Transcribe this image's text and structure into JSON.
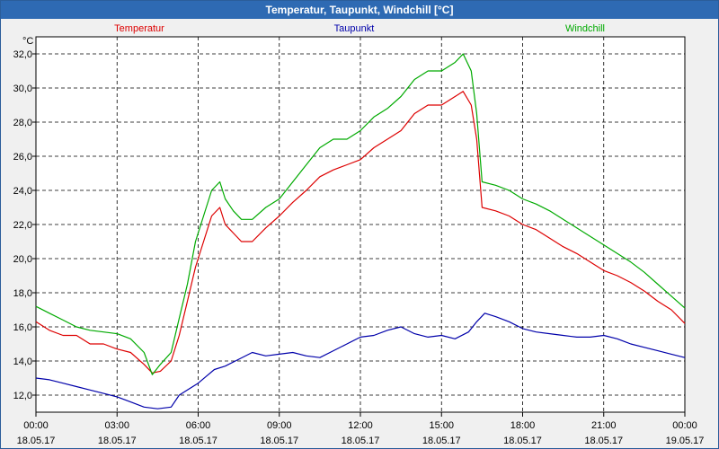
{
  "window": {
    "title": "Temperatur, Taupunkt, Windchill [°C]"
  },
  "chart_data": {
    "type": "line",
    "title": "Temperatur, Taupunkt, Windchill [°C]",
    "unit_label": "°C",
    "x_range_hours": [
      0,
      24
    ],
    "ylim": [
      11,
      33
    ],
    "y_ticks": [
      "12,0",
      "14,0",
      "16,0",
      "18,0",
      "20,0",
      "22,0",
      "24,0",
      "26,0",
      "28,0",
      "30,0",
      "32,0"
    ],
    "x_ticks": [
      {
        "time": "00:00",
        "date": "18.05.17"
      },
      {
        "time": "03:00",
        "date": "18.05.17"
      },
      {
        "time": "06:00",
        "date": "18.05.17"
      },
      {
        "time": "09:00",
        "date": "18.05.17"
      },
      {
        "time": "12:00",
        "date": "18.05.17"
      },
      {
        "time": "15:00",
        "date": "18.05.17"
      },
      {
        "time": "18:00",
        "date": "18.05.17"
      },
      {
        "time": "21:00",
        "date": "18.05.17"
      },
      {
        "time": "00:00",
        "date": "19.05.17"
      }
    ],
    "grid": true,
    "legend_position": "top",
    "series": [
      {
        "name": "Temperatur",
        "color": "#dd0000",
        "points": [
          [
            0,
            16.3
          ],
          [
            0.5,
            15.8
          ],
          [
            1,
            15.5
          ],
          [
            1.5,
            15.5
          ],
          [
            2,
            15.0
          ],
          [
            2.5,
            15.0
          ],
          [
            3,
            14.7
          ],
          [
            3.5,
            14.5
          ],
          [
            4,
            13.8
          ],
          [
            4.3,
            13.3
          ],
          [
            4.6,
            13.4
          ],
          [
            5,
            14.0
          ],
          [
            5.3,
            15.5
          ],
          [
            5.6,
            17.5
          ],
          [
            5.9,
            19.5
          ],
          [
            6.2,
            21.0
          ],
          [
            6.5,
            22.5
          ],
          [
            6.8,
            23.0
          ],
          [
            7.0,
            22.0
          ],
          [
            7.3,
            21.5
          ],
          [
            7.6,
            21.0
          ],
          [
            8,
            21.0
          ],
          [
            8.5,
            21.8
          ],
          [
            9,
            22.5
          ],
          [
            9.5,
            23.3
          ],
          [
            10,
            24.0
          ],
          [
            10.5,
            24.8
          ],
          [
            11,
            25.2
          ],
          [
            11.5,
            25.5
          ],
          [
            12,
            25.8
          ],
          [
            12.5,
            26.5
          ],
          [
            13,
            27.0
          ],
          [
            13.5,
            27.5
          ],
          [
            14,
            28.5
          ],
          [
            14.5,
            29.0
          ],
          [
            15,
            29.0
          ],
          [
            15.5,
            29.5
          ],
          [
            15.8,
            29.8
          ],
          [
            16.1,
            29.0
          ],
          [
            16.3,
            27.0
          ],
          [
            16.5,
            23.0
          ],
          [
            17,
            22.8
          ],
          [
            17.5,
            22.5
          ],
          [
            18,
            22.0
          ],
          [
            18.5,
            21.7
          ],
          [
            19,
            21.2
          ],
          [
            19.5,
            20.7
          ],
          [
            20,
            20.3
          ],
          [
            20.5,
            19.8
          ],
          [
            21,
            19.3
          ],
          [
            21.5,
            19.0
          ],
          [
            22,
            18.6
          ],
          [
            22.5,
            18.1
          ],
          [
            23,
            17.5
          ],
          [
            23.5,
            17.0
          ],
          [
            24,
            16.2
          ]
        ]
      },
      {
        "name": "Taupunkt",
        "color": "#0000aa",
        "points": [
          [
            0,
            13.0
          ],
          [
            0.5,
            12.9
          ],
          [
            1,
            12.7
          ],
          [
            1.5,
            12.5
          ],
          [
            2,
            12.3
          ],
          [
            2.5,
            12.1
          ],
          [
            3,
            11.9
          ],
          [
            3.5,
            11.6
          ],
          [
            4,
            11.3
          ],
          [
            4.5,
            11.2
          ],
          [
            5,
            11.3
          ],
          [
            5.3,
            12.0
          ],
          [
            5.6,
            12.3
          ],
          [
            6,
            12.7
          ],
          [
            6.3,
            13.1
          ],
          [
            6.6,
            13.5
          ],
          [
            7,
            13.7
          ],
          [
            7.5,
            14.1
          ],
          [
            8,
            14.5
          ],
          [
            8.5,
            14.3
          ],
          [
            9,
            14.4
          ],
          [
            9.5,
            14.5
          ],
          [
            10,
            14.3
          ],
          [
            10.5,
            14.2
          ],
          [
            11,
            14.6
          ],
          [
            11.5,
            15.0
          ],
          [
            12,
            15.4
          ],
          [
            12.5,
            15.5
          ],
          [
            13,
            15.8
          ],
          [
            13.5,
            16.0
          ],
          [
            14,
            15.6
          ],
          [
            14.5,
            15.4
          ],
          [
            15,
            15.5
          ],
          [
            15.5,
            15.3
          ],
          [
            16,
            15.7
          ],
          [
            16.3,
            16.3
          ],
          [
            16.6,
            16.8
          ],
          [
            17,
            16.6
          ],
          [
            17.5,
            16.3
          ],
          [
            18,
            15.9
          ],
          [
            18.5,
            15.7
          ],
          [
            19,
            15.6
          ],
          [
            19.5,
            15.5
          ],
          [
            20,
            15.4
          ],
          [
            20.5,
            15.4
          ],
          [
            21,
            15.5
          ],
          [
            21.5,
            15.3
          ],
          [
            22,
            15.0
          ],
          [
            22.5,
            14.8
          ],
          [
            23,
            14.6
          ],
          [
            23.5,
            14.4
          ],
          [
            24,
            14.2
          ]
        ]
      },
      {
        "name": "Windchill",
        "color": "#00aa00",
        "points": [
          [
            0,
            17.2
          ],
          [
            0.5,
            16.8
          ],
          [
            1,
            16.4
          ],
          [
            1.5,
            16.0
          ],
          [
            2,
            15.8
          ],
          [
            2.5,
            15.7
          ],
          [
            3,
            15.6
          ],
          [
            3.5,
            15.3
          ],
          [
            4,
            14.5
          ],
          [
            4.3,
            13.2
          ],
          [
            4.6,
            13.8
          ],
          [
            5,
            14.5
          ],
          [
            5.3,
            16.5
          ],
          [
            5.6,
            18.5
          ],
          [
            5.9,
            21.0
          ],
          [
            6.2,
            22.5
          ],
          [
            6.5,
            24.0
          ],
          [
            6.8,
            24.5
          ],
          [
            7.0,
            23.5
          ],
          [
            7.3,
            22.8
          ],
          [
            7.6,
            22.3
          ],
          [
            8,
            22.3
          ],
          [
            8.5,
            23.0
          ],
          [
            9,
            23.5
          ],
          [
            9.5,
            24.5
          ],
          [
            10,
            25.5
          ],
          [
            10.5,
            26.5
          ],
          [
            11,
            27.0
          ],
          [
            11.5,
            27.0
          ],
          [
            12,
            27.5
          ],
          [
            12.5,
            28.3
          ],
          [
            13,
            28.8
          ],
          [
            13.5,
            29.5
          ],
          [
            14,
            30.5
          ],
          [
            14.5,
            31.0
          ],
          [
            15,
            31.0
          ],
          [
            15.5,
            31.5
          ],
          [
            15.8,
            32.0
          ],
          [
            16.1,
            31.0
          ],
          [
            16.3,
            28.5
          ],
          [
            16.5,
            24.5
          ],
          [
            17,
            24.3
          ],
          [
            17.5,
            24.0
          ],
          [
            18,
            23.5
          ],
          [
            18.5,
            23.2
          ],
          [
            19,
            22.8
          ],
          [
            19.5,
            22.3
          ],
          [
            20,
            21.8
          ],
          [
            20.5,
            21.3
          ],
          [
            21,
            20.8
          ],
          [
            21.5,
            20.3
          ],
          [
            22,
            19.8
          ],
          [
            22.5,
            19.2
          ],
          [
            23,
            18.5
          ],
          [
            23.5,
            17.8
          ],
          [
            24,
            17.1
          ]
        ]
      }
    ]
  }
}
